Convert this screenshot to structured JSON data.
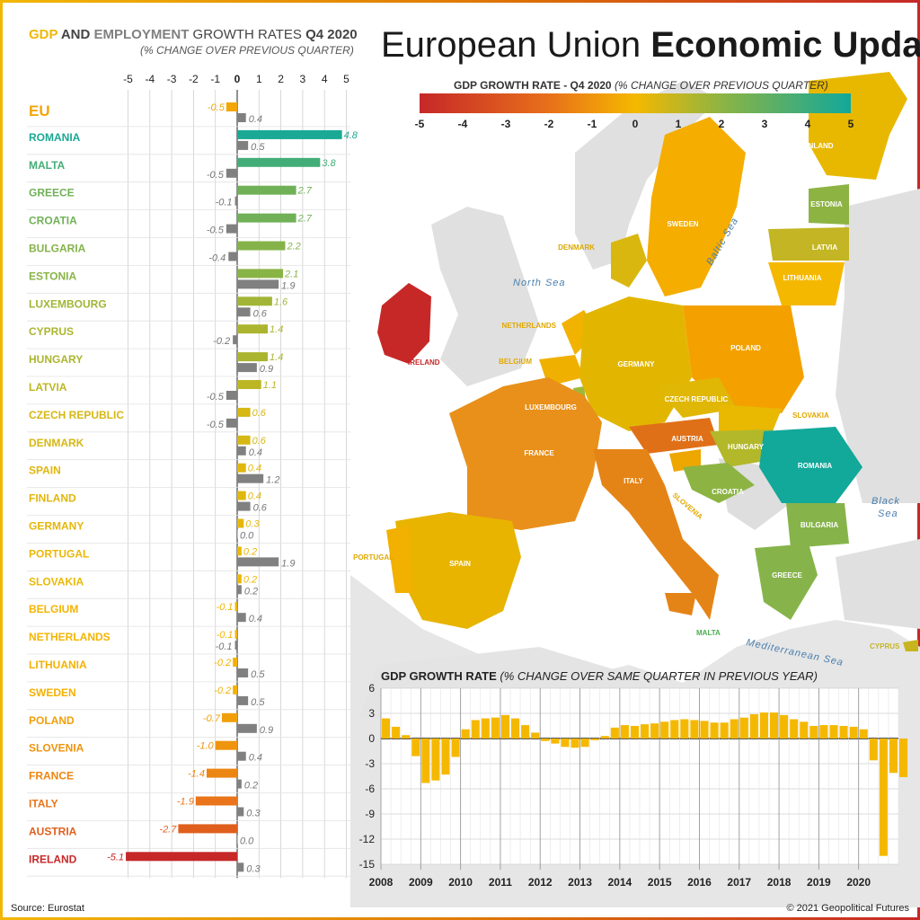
{
  "title": {
    "main": "European Union",
    "bold": "Economic Update"
  },
  "left_chart_title": {
    "gdp": "GDP",
    "and": " AND ",
    "emp": "EMPLOYMENT",
    "rest": " GROWTH RATES ",
    "q": "Q4 2020"
  },
  "left_chart_subtitle": "(% CHANGE OVER PREVIOUS QUARTER)",
  "source": "Source: Eurostat",
  "copyright": "© 2021 Geopolitical Futures",
  "colors": {
    "gdp_pos_high": "#12a89a",
    "gdp_mid": "#e8b800",
    "gdp_neg": "#c62828",
    "employment": "#808080",
    "accent": "#f2b705"
  },
  "colorbar": {
    "title": "GDP GROWTH RATE - Q4 2020",
    "subtitle": "(% CHANGE OVER PREVIOUS QUARTER)",
    "ticks": [
      "-5",
      "-4",
      "-3",
      "-2",
      "-1",
      "0",
      "1",
      "2",
      "3",
      "4",
      "5"
    ]
  },
  "map_labels": {
    "finland": "FINLAND",
    "sweden": "SWEDEN",
    "estonia": "ESTONIA",
    "latvia": "LATVIA",
    "lithuania": "LITHUANIA",
    "denmark": "DENMARK",
    "netherlands": "NETHERLANDS",
    "belgium": "BELGIUM",
    "luxembourg": "LUXEMBOURG",
    "germany": "GERMANY",
    "poland": "POLAND",
    "czech": "CZECH REPUBLIC",
    "slovakia": "SLOVAKIA",
    "austria": "AUSTRIA",
    "hungary": "HUNGARY",
    "romania": "ROMANIA",
    "france": "FRANCE",
    "italy": "ITALY",
    "slovenia": "SLOVENIA",
    "croatia": "CROATIA",
    "bulgaria": "BULGARIA",
    "greece": "GREECE",
    "spain": "SPAIN",
    "portugal": "PORTUGAL",
    "ireland": "IRELAND",
    "malta": "MALTA",
    "cyprus": "CYPRUS",
    "north_sea": "North Sea",
    "baltic_sea": "Baltic Sea",
    "black_sea_1": "Black",
    "black_sea_2": "Sea",
    "mediterranean": "Mediterranean Sea"
  },
  "chart_data": [
    {
      "type": "bar",
      "orientation": "horizontal",
      "xlim": [
        -5,
        5
      ],
      "x_ticks": [
        "-5",
        "-4",
        "-3",
        "-2",
        "-1",
        "0",
        "1",
        "2",
        "3",
        "4",
        "5"
      ],
      "grid": true,
      "categories": [
        "EU",
        "ROMANIA",
        "MALTA",
        "GREECE",
        "CROATIA",
        "BULGARIA",
        "ESTONIA",
        "LUXEMBOURG",
        "CYPRUS",
        "HUNGARY",
        "LATVIA",
        "CZECH REPUBLIC",
        "DENMARK",
        "SPAIN",
        "FINLAND",
        "GERMANY",
        "PORTUGAL",
        "SLOVAKIA",
        "BELGIUM",
        "NETHERLANDS",
        "LITHUANIA",
        "SWEDEN",
        "POLAND",
        "SLOVENIA",
        "FRANCE",
        "ITALY",
        "AUSTRIA",
        "IRELAND"
      ],
      "series": [
        {
          "name": "GDP",
          "values": [
            -0.5,
            4.8,
            3.8,
            2.7,
            2.7,
            2.2,
            2.1,
            1.6,
            1.4,
            1.4,
            1.1,
            0.6,
            0.6,
            0.4,
            0.4,
            0.3,
            0.2,
            0.2,
            -0.1,
            -0.1,
            -0.2,
            -0.2,
            -0.7,
            -1.0,
            -1.4,
            -1.9,
            -2.7,
            -5.1
          ],
          "labels": [
            "-0.5",
            "4.8",
            "3.8",
            "2.7",
            "2.7",
            "2.2",
            "2.1",
            "1.6",
            "1.4",
            "1.4",
            "1.1",
            "0.6",
            "0.6",
            "0.4",
            "0.4",
            "0.3",
            "0.2",
            "0.2",
            "-0.1",
            "-0.1",
            "-0.2",
            "-0.2",
            "-0.7",
            "-1.0",
            "-1.4",
            "-1.9",
            "-2.7",
            "-5.1"
          ]
        },
        {
          "name": "EMPLOYMENT",
          "values": [
            0.4,
            0.5,
            -0.5,
            -0.1,
            -0.5,
            -0.4,
            1.9,
            0.6,
            -0.2,
            0.9,
            -0.5,
            -0.5,
            0.4,
            1.2,
            0.6,
            0.0,
            1.9,
            0.2,
            0.4,
            -0.1,
            0.5,
            0.5,
            0.9,
            0.4,
            0.2,
            0.3,
            0.0,
            0.3
          ],
          "labels": [
            "0.4",
            "0.5",
            "-0.5",
            "-0.1",
            "-0.5",
            "-0.4",
            "1.9",
            "0.6",
            "-0.2",
            "0.9",
            "-0.5",
            "-0.5",
            "0.4",
            "1.2",
            "0.6",
            "0.0",
            "1.9",
            "0.2",
            "0.4",
            "-0.1",
            "0.5",
            "0.5",
            "0.9",
            "0.4",
            "0.2",
            "0.3",
            "0.0",
            "0.3"
          ]
        }
      ]
    },
    {
      "type": "bar",
      "title": "GDP GROWTH RATE",
      "subtitle": "(% CHANGE OVER SAME QUARTER IN PREVIOUS YEAR)",
      "ylim": [
        -15,
        6
      ],
      "y_ticks": [
        "6",
        "3",
        "0",
        "-3",
        "-6",
        "-9",
        "-12",
        "-15"
      ],
      "x_ticks": [
        "2008",
        "2009",
        "2010",
        "2011",
        "2012",
        "2013",
        "2014",
        "2015",
        "2016",
        "2017",
        "2018",
        "2019",
        "2020"
      ],
      "x_start": 2008,
      "x_end": 2021,
      "grid": true,
      "values": [
        2.4,
        1.4,
        0.4,
        -2.1,
        -5.3,
        -5.0,
        -4.3,
        -2.2,
        1.1,
        2.2,
        2.4,
        2.5,
        2.8,
        2.4,
        1.6,
        0.7,
        -0.3,
        -0.6,
        -1.0,
        -1.1,
        -1.0,
        -0.2,
        0.3,
        1.3,
        1.6,
        1.5,
        1.7,
        1.8,
        2.0,
        2.2,
        2.3,
        2.2,
        2.1,
        1.9,
        1.9,
        2.3,
        2.5,
        2.9,
        3.1,
        3.1,
        2.8,
        2.3,
        2.0,
        1.5,
        1.6,
        1.6,
        1.5,
        1.4,
        1.1,
        -2.6,
        -14.0,
        -4.1,
        -4.6
      ]
    }
  ]
}
